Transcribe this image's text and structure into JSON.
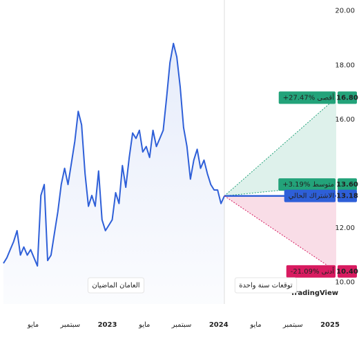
{
  "chart_data": {
    "type": "line",
    "series": [
      {
        "name": null,
        "color": "#2e5fd8",
        "values": [
          10.7,
          10.9,
          11.2,
          11.5,
          11.9,
          11.0,
          11.3,
          11.0,
          11.2,
          10.9,
          10.6,
          13.2,
          13.6,
          10.8,
          11.0,
          11.8,
          12.6,
          13.6,
          14.2,
          13.6,
          14.4,
          15.2,
          16.3,
          15.8,
          14.0,
          12.8,
          13.2,
          12.8,
          14.1,
          12.3,
          11.9,
          12.1,
          12.3,
          13.3,
          12.9,
          14.3,
          13.5,
          14.6,
          15.5,
          15.3,
          15.6,
          14.8,
          15.0,
          14.6,
          15.6,
          15.0,
          15.3,
          15.6,
          16.8,
          18.1,
          18.8,
          18.3,
          17.2,
          15.7,
          15.0,
          13.8,
          14.5,
          14.9,
          14.2,
          14.5,
          14.0,
          13.6,
          13.4,
          13.4,
          12.9,
          13.18
        ]
      }
    ],
    "x_labels": [
      "مايو",
      "سبتمبر",
      "2023",
      "مايو",
      "سبتمبر",
      "2024",
      "مايو",
      "سبتمبر",
      "2025"
    ],
    "ylim": [
      9.2,
      20.4
    ],
    "yticks": [
      {
        "value": 20,
        "label": "20.00"
      },
      {
        "value": 18,
        "label": "18.00"
      },
      {
        "value": 16,
        "label": "16.00"
      },
      {
        "value": 12,
        "label": "12.00"
      },
      {
        "value": 10,
        "label": "10.00"
      }
    ],
    "past_label": "العامان الماضيان",
    "forecast_label": "توقعات سنة واحدة",
    "logo": "TradingView",
    "forecast": [
      {
        "name": "max",
        "text": "+27.47% أقصى",
        "value": 16.8,
        "value_label": "16.80",
        "color": "#23a37a"
      },
      {
        "name": "avg",
        "text": "+3.19% متوسط",
        "value": 13.6,
        "value_label": "13.60",
        "color": "#23a37a"
      },
      {
        "name": "current",
        "text": "الاشتراك الحالي",
        "value": 13.18,
        "value_label": "13.18",
        "color": "#2e5fd8"
      },
      {
        "name": "min",
        "text": "-21.09% أدنى",
        "value": 10.4,
        "value_label": "10.40",
        "color": "#d81b60"
      }
    ]
  }
}
